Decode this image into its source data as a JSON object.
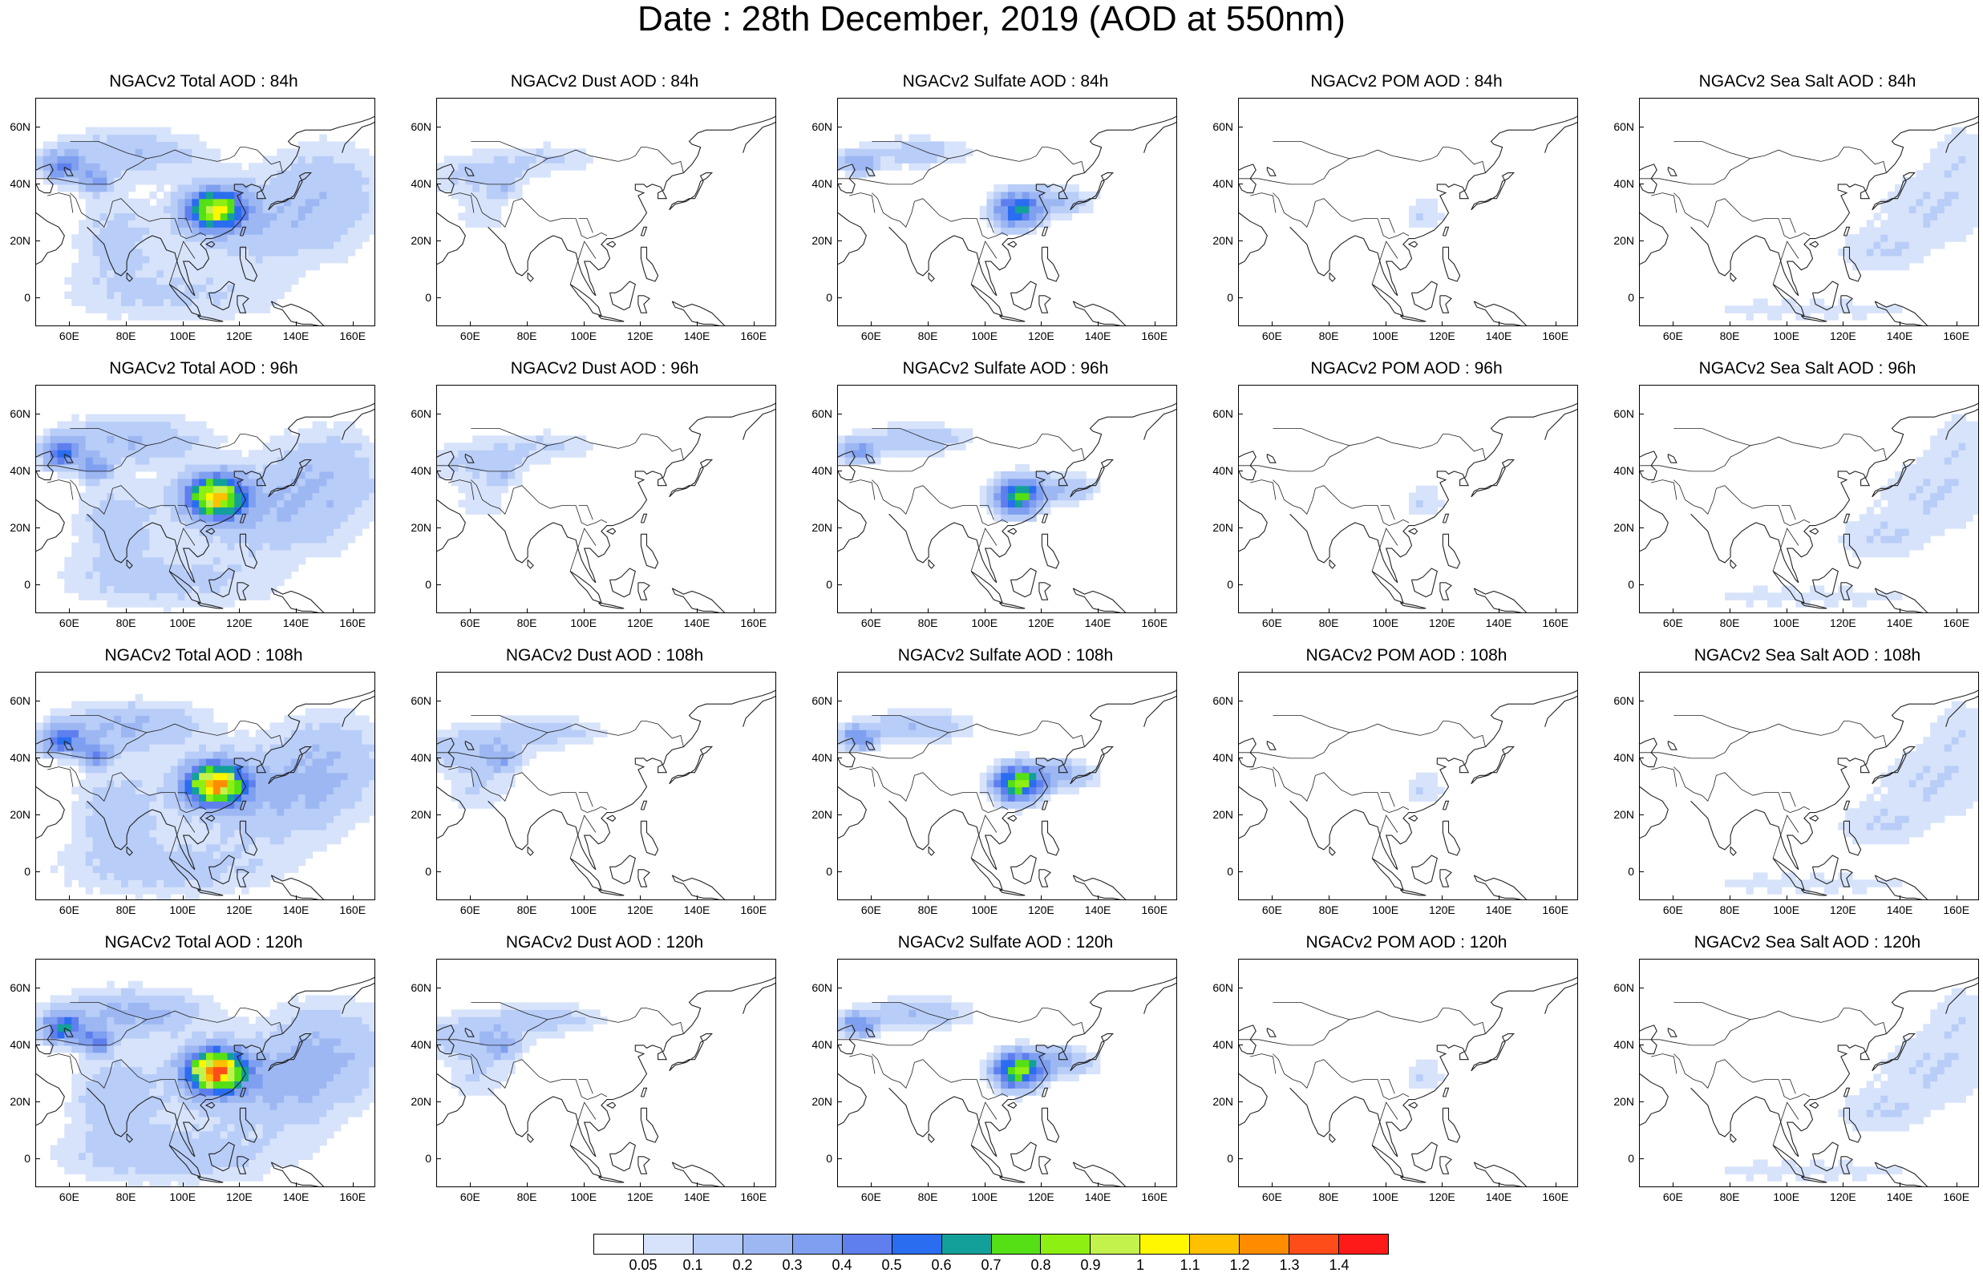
{
  "title": "Date : 28th December, 2019 (AOD at 550nm)",
  "panels": [
    {
      "title": "NGACv2 Total AOD : 84h",
      "species": "total",
      "level": 0.9
    },
    {
      "title": "NGACv2 Dust AOD : 84h",
      "species": "dust",
      "level": 0.2
    },
    {
      "title": "NGACv2 Sulfate AOD : 84h",
      "species": "sulfate",
      "level": 0.6
    },
    {
      "title": "NGACv2 POM AOD : 84h",
      "species": "pom",
      "level": 0.1
    },
    {
      "title": "NGACv2 Sea Salt AOD : 84h",
      "species": "seasalt",
      "level": 0.1
    },
    {
      "title": "NGACv2 Total AOD : 96h",
      "species": "total",
      "level": 1.0
    },
    {
      "title": "NGACv2 Dust AOD : 96h",
      "species": "dust",
      "level": 0.2
    },
    {
      "title": "NGACv2 Sulfate AOD : 96h",
      "species": "sulfate",
      "level": 0.7
    },
    {
      "title": "NGACv2 POM AOD : 96h",
      "species": "pom",
      "level": 0.1
    },
    {
      "title": "NGACv2 Sea Salt AOD : 96h",
      "species": "seasalt",
      "level": 0.1
    },
    {
      "title": "NGACv2 Total AOD : 108h",
      "species": "total",
      "level": 1.1
    },
    {
      "title": "NGACv2 Dust AOD : 108h",
      "species": "dust",
      "level": 0.3
    },
    {
      "title": "NGACv2 Sulfate AOD : 108h",
      "species": "sulfate",
      "level": 0.8
    },
    {
      "title": "NGACv2 POM AOD : 108h",
      "species": "pom",
      "level": 0.1
    },
    {
      "title": "NGACv2 Sea Salt AOD : 108h",
      "species": "seasalt",
      "level": 0.1
    },
    {
      "title": "NGACv2 Total AOD : 120h",
      "species": "total",
      "level": 1.2
    },
    {
      "title": "NGACv2 Dust AOD : 120h",
      "species": "dust",
      "level": 0.3
    },
    {
      "title": "NGACv2 Sulfate AOD : 120h",
      "species": "sulfate",
      "level": 0.8
    },
    {
      "title": "NGACv2 POM AOD : 120h",
      "species": "pom",
      "level": 0.1
    },
    {
      "title": "NGACv2 Sea Salt  AOD : 120h",
      "species": "seasalt",
      "level": 0.1
    }
  ],
  "axes": {
    "lon_labels": [
      "60E",
      "80E",
      "100E",
      "120E",
      "140E",
      "160E"
    ],
    "lon_values": [
      60,
      80,
      100,
      120,
      140,
      160
    ],
    "lon_range": [
      48,
      168
    ],
    "lat_labels": [
      "60N",
      "40N",
      "20N",
      "0"
    ],
    "lat_values": [
      60,
      40,
      20,
      0
    ],
    "lat_range": [
      -10,
      70
    ]
  },
  "colorbar": {
    "labels": [
      "0.05",
      "0.1",
      "0.2",
      "0.3",
      "0.4",
      "0.5",
      "0.6",
      "0.7",
      "0.8",
      "0.9",
      "1",
      "1.1",
      "1.2",
      "1.3",
      "1.4"
    ],
    "colors": [
      "#ffffff",
      "#d7e3fb",
      "#b8cdf7",
      "#9db7f3",
      "#7f9ff0",
      "#5f7fee",
      "#2a6df0",
      "#13a09a",
      "#55e015",
      "#8df012",
      "#c4f24c",
      "#fff700",
      "#ffc000",
      "#ff8c00",
      "#ff4d1a",
      "#ff1a1a"
    ]
  }
}
